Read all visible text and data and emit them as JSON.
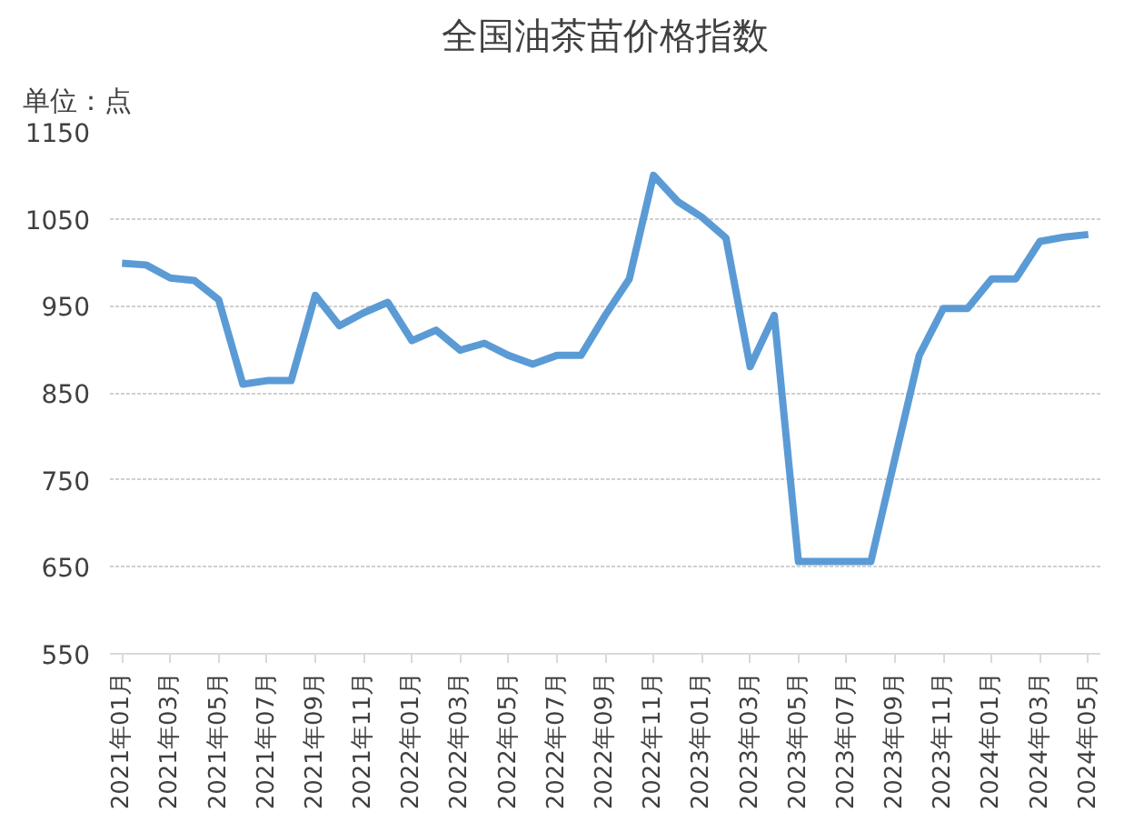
{
  "chart_data": {
    "type": "line",
    "title": "全国油茶苗价格指数",
    "annotations": [
      "单位：点"
    ],
    "categories": [
      "2021年01月",
      null,
      "2021年03月",
      null,
      "2021年05月",
      null,
      "2021年07月",
      null,
      "2021年09月",
      null,
      "2021年11月",
      null,
      "2022年01月",
      null,
      "2022年03月",
      null,
      "2022年05月",
      null,
      "2022年07月",
      null,
      "2022年09月",
      null,
      "2022年11月",
      null,
      "2023年01月",
      null,
      "2023年03月",
      null,
      "2023年05月",
      null,
      "2023年07月",
      null,
      "2023年09月",
      null,
      "2023年11月",
      null,
      "2024年01月",
      null,
      "2024年03月",
      null,
      "2024年05月"
    ],
    "series": [
      {
        "color": "#5b9bd5",
        "values": [
          999,
          997,
          982,
          979,
          957,
          860,
          864,
          864,
          962,
          927,
          942,
          954,
          910,
          922,
          899,
          907,
          893,
          883,
          893,
          893,
          939,
          981,
          1100,
          1070,
          1052,
          1028,
          880,
          939,
          656,
          656,
          656,
          656,
          775,
          893,
          947,
          947,
          981,
          981,
          1024,
          1029,
          1032
        ]
      }
    ],
    "ylim": [
      550,
      1150
    ],
    "yticks": [
      550,
      650,
      750,
      850,
      950,
      1050,
      1150
    ],
    "grid": "y",
    "marker": "none",
    "line_style": "solid"
  }
}
